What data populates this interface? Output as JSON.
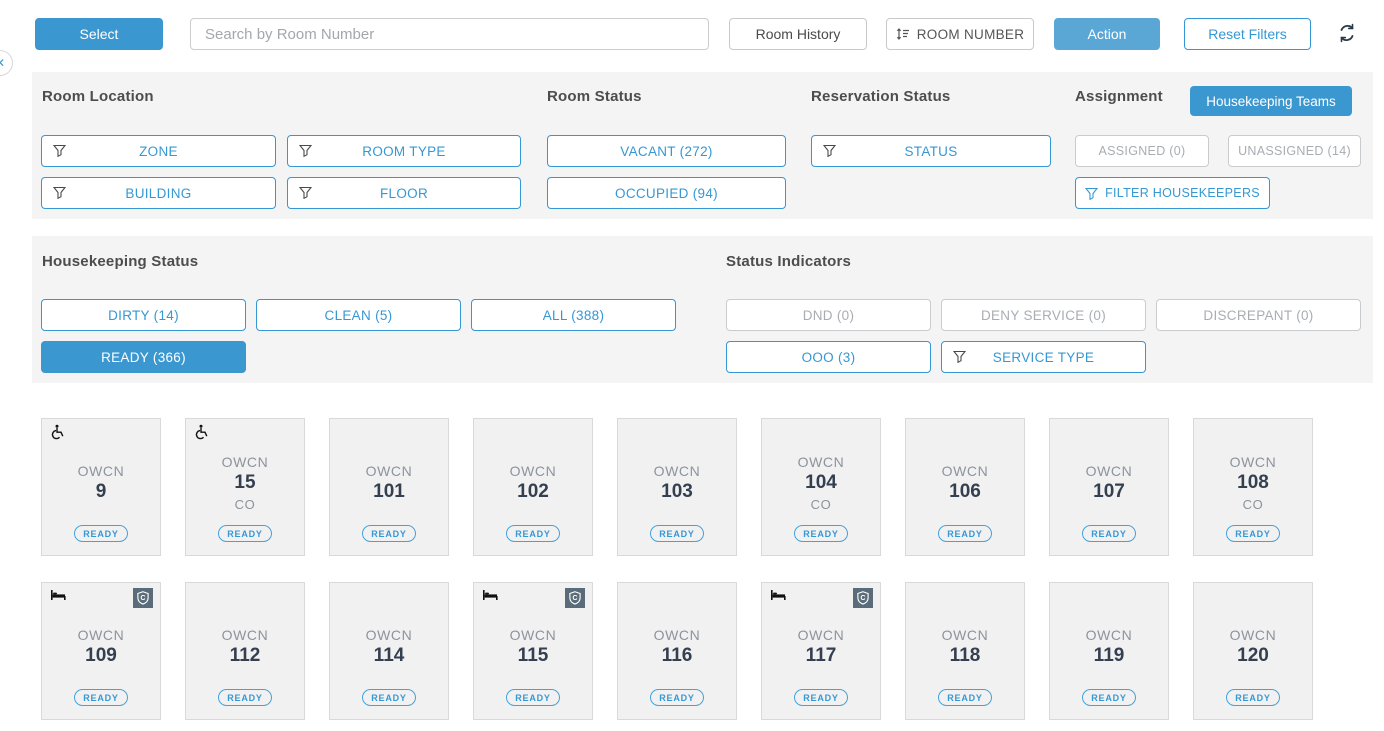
{
  "colors": {
    "blue": "#3598d4",
    "blue_fill": "#3b97cf",
    "blue_light": "#5aa7d6",
    "panel_bg": "#f4f4f5",
    "dark_icon": "#2b3947"
  },
  "toolbar": {
    "select_label": "Select",
    "search_placeholder": "Search by Room Number",
    "room_history_label": "Room History",
    "sort_label": "ROOM NUMBER",
    "action_label": "Action",
    "reset_filters_label": "Reset Filters",
    "collapse_glyph": "✕"
  },
  "filters": {
    "room_location": {
      "title": "Room Location",
      "buttons": [
        "ZONE",
        "ROOM TYPE",
        "BUILDING",
        "FLOOR"
      ]
    },
    "room_status": {
      "title": "Room Status",
      "vacant": "VACANT (272)",
      "occupied": "OCCUPIED (94)"
    },
    "reservation_status": {
      "title": "Reservation Status",
      "status": "STATUS"
    },
    "assignment": {
      "title": "Assignment",
      "teams": "Housekeeping Teams",
      "assigned": "ASSIGNED (0)",
      "unassigned": "UNASSIGNED (14)",
      "filter_housekeepers": "FILTER HOUSEKEEPERS"
    }
  },
  "housekeeping_status": {
    "title": "Housekeeping Status",
    "dirty": "DIRTY (14)",
    "clean": "CLEAN (5)",
    "all": "ALL (388)",
    "ready": "READY (366)"
  },
  "status_indicators": {
    "title": "Status Indicators",
    "dnd": "DND (0)",
    "deny_service": "DENY SERVICE (0)",
    "discrepant": "DISCREPANT (0)",
    "ooo": "OOO (3)",
    "service_type": "SERVICE TYPE"
  },
  "rooms": [
    {
      "type": "OWCN",
      "number": "9",
      "note": "",
      "status": "READY",
      "wheelchair": true,
      "bed": false,
      "c_badge": false
    },
    {
      "type": "OWCN",
      "number": "15",
      "note": "CO",
      "status": "READY",
      "wheelchair": true,
      "bed": false,
      "c_badge": false
    },
    {
      "type": "OWCN",
      "number": "101",
      "note": "",
      "status": "READY",
      "wheelchair": false,
      "bed": false,
      "c_badge": false
    },
    {
      "type": "OWCN",
      "number": "102",
      "note": "",
      "status": "READY",
      "wheelchair": false,
      "bed": false,
      "c_badge": false
    },
    {
      "type": "OWCN",
      "number": "103",
      "note": "",
      "status": "READY",
      "wheelchair": false,
      "bed": false,
      "c_badge": false
    },
    {
      "type": "OWCN",
      "number": "104",
      "note": "CO",
      "status": "READY",
      "wheelchair": false,
      "bed": false,
      "c_badge": false
    },
    {
      "type": "OWCN",
      "number": "106",
      "note": "",
      "status": "READY",
      "wheelchair": false,
      "bed": false,
      "c_badge": false
    },
    {
      "type": "OWCN",
      "number": "107",
      "note": "",
      "status": "READY",
      "wheelchair": false,
      "bed": false,
      "c_badge": false
    },
    {
      "type": "OWCN",
      "number": "108",
      "note": "CO",
      "status": "READY",
      "wheelchair": false,
      "bed": false,
      "c_badge": false
    },
    {
      "type": "OWCN",
      "number": "109",
      "note": "",
      "status": "READY",
      "wheelchair": false,
      "bed": true,
      "c_badge": true
    },
    {
      "type": "OWCN",
      "number": "112",
      "note": "",
      "status": "READY",
      "wheelchair": false,
      "bed": false,
      "c_badge": false
    },
    {
      "type": "OWCN",
      "number": "114",
      "note": "",
      "status": "READY",
      "wheelchair": false,
      "bed": false,
      "c_badge": false
    },
    {
      "type": "OWCN",
      "number": "115",
      "note": "",
      "status": "READY",
      "wheelchair": false,
      "bed": true,
      "c_badge": true
    },
    {
      "type": "OWCN",
      "number": "116",
      "note": "",
      "status": "READY",
      "wheelchair": false,
      "bed": false,
      "c_badge": false
    },
    {
      "type": "OWCN",
      "number": "117",
      "note": "",
      "status": "READY",
      "wheelchair": false,
      "bed": true,
      "c_badge": true
    },
    {
      "type": "OWCN",
      "number": "118",
      "note": "",
      "status": "READY",
      "wheelchair": false,
      "bed": false,
      "c_badge": false
    },
    {
      "type": "OWCN",
      "number": "119",
      "note": "",
      "status": "READY",
      "wheelchair": false,
      "bed": false,
      "c_badge": false
    },
    {
      "type": "OWCN",
      "number": "120",
      "note": "",
      "status": "READY",
      "wheelchair": false,
      "bed": false,
      "c_badge": false
    }
  ]
}
